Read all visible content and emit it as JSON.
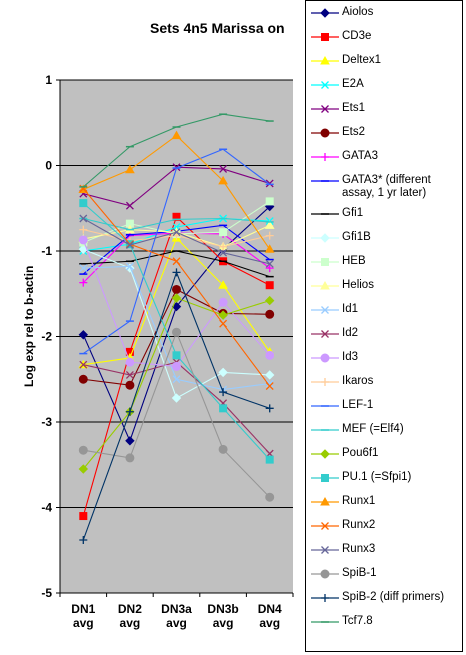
{
  "chart_data": {
    "type": "line",
    "title": "Sets 4n5 Marissa on",
    "xlabel": "",
    "ylabel": "Log exp rel to b-actin",
    "ylim": [
      -5,
      1
    ],
    "yticks": [
      "1",
      "0",
      "-1",
      "-2",
      "-3",
      "-4",
      "-5"
    ],
    "grid": true,
    "legend_position": "right",
    "categories": [
      "DN1 avg",
      "DN2 avg",
      "DN3a avg",
      "DN3b avg",
      "DN4 avg"
    ],
    "series": [
      {
        "name": "Aiolos",
        "color": "#000080",
        "marker": "diamond",
        "values": [
          -1.98,
          -3.22,
          -1.65,
          -0.98,
          -0.48
        ]
      },
      {
        "name": "CD3e",
        "color": "#ff0000",
        "marker": "square",
        "values": [
          -4.1,
          -2.18,
          -0.6,
          -1.12,
          -1.4
        ]
      },
      {
        "name": "Deltex1",
        "color": "#ffff00",
        "marker": "triangle",
        "values": [
          -2.33,
          -2.25,
          -0.85,
          -1.4,
          -2.18
        ]
      },
      {
        "name": "E2A",
        "color": "#00ffff",
        "marker": "x",
        "values": [
          -1.0,
          -0.92,
          -0.72,
          -0.62,
          -0.65
        ]
      },
      {
        "name": "Ets1",
        "color": "#800080",
        "marker": "x",
        "values": [
          -0.33,
          -0.47,
          -0.02,
          -0.04,
          -0.21
        ]
      },
      {
        "name": "Ets2",
        "color": "#800000",
        "marker": "circle",
        "values": [
          -2.5,
          -2.57,
          -1.45,
          -1.73,
          -1.74
        ]
      },
      {
        "name": "GATA3",
        "color": "#ff00ff",
        "marker": "plus",
        "values": [
          -1.37,
          -0.82,
          -0.79,
          -0.8,
          -1.2
        ]
      },
      {
        "name": "GATA3* (different assay, 1 yr later)",
        "color": "#0000ff",
        "marker": "dash",
        "values": [
          -1.27,
          -0.81,
          -0.77,
          -0.7,
          -1.1
        ]
      },
      {
        "name": "Gfi1",
        "color": "#000000",
        "marker": "dash",
        "values": [
          -1.15,
          -1.12,
          -1.0,
          -1.12,
          -1.3
        ]
      },
      {
        "name": "Gfi1B",
        "color": "#ccffff",
        "marker": "diamond",
        "values": [
          -0.98,
          -1.2,
          -2.72,
          -2.42,
          -2.45
        ]
      },
      {
        "name": "HEB",
        "color": "#ccffcc",
        "marker": "square",
        "values": [
          -0.9,
          -0.68,
          -0.8,
          -0.78,
          -0.42
        ]
      },
      {
        "name": "Helios",
        "color": "#ffff99",
        "marker": "triangle",
        "values": [
          -0.86,
          -0.75,
          -0.78,
          -0.95,
          -0.7
        ]
      },
      {
        "name": "Id1",
        "color": "#99ccff",
        "marker": "x",
        "values": [
          -1.2,
          -1.18,
          -2.5,
          -2.62,
          -2.55
        ]
      },
      {
        "name": "Id2",
        "color": "#993366",
        "marker": "x",
        "values": [
          -2.33,
          -2.45,
          -2.3,
          -2.78,
          -3.37
        ]
      },
      {
        "name": "Id3",
        "color": "#cc99ff",
        "marker": "circle",
        "values": [
          -0.87,
          -2.3,
          -2.35,
          -1.6,
          -2.22
        ]
      },
      {
        "name": "Ikaros",
        "color": "#ffcc99",
        "marker": "plus",
        "values": [
          -0.75,
          -0.88,
          -0.82,
          -0.95,
          -0.82
        ]
      },
      {
        "name": "LEF-1",
        "color": "#3366ff",
        "marker": "dash",
        "values": [
          -2.2,
          -1.82,
          -0.03,
          0.19,
          -0.22
        ]
      },
      {
        "name": "MEF (=Elf4)",
        "color": "#33cccc",
        "marker": "dash",
        "values": [
          -0.62,
          -0.75,
          -0.63,
          -0.62,
          -0.66
        ]
      },
      {
        "name": "Pou6f1",
        "color": "#99cc00",
        "marker": "diamond",
        "values": [
          -3.55,
          -2.88,
          -1.55,
          -1.75,
          -1.58
        ]
      },
      {
        "name": "PU.1 (=Sfpi1)",
        "color": "#33cccc",
        "marker": "square",
        "values": [
          -0.44,
          -0.92,
          -2.22,
          -2.84,
          -3.44
        ]
      },
      {
        "name": "Runx1",
        "color": "#ff9900",
        "marker": "triangle",
        "values": [
          -0.28,
          -0.05,
          0.35,
          -0.18,
          -0.98
        ]
      },
      {
        "name": "Runx2",
        "color": "#ff6600",
        "marker": "x",
        "values": [
          -0.27,
          -0.92,
          -1.12,
          -1.85,
          -2.58
        ]
      },
      {
        "name": "Runx3",
        "color": "#666699",
        "marker": "x",
        "values": [
          -0.62,
          -0.93,
          -0.78,
          -1.02,
          -1.15
        ]
      },
      {
        "name": "SpiB-1",
        "color": "#969696",
        "marker": "circle",
        "values": [
          -3.33,
          -3.42,
          -1.95,
          -3.32,
          -3.88
        ]
      },
      {
        "name": "SpiB-2 (diff primers)",
        "color": "#003366",
        "marker": "plus",
        "values": [
          -4.38,
          -2.88,
          -1.25,
          -2.65,
          -2.84
        ]
      },
      {
        "name": "Tcf7.8",
        "color": "#339966",
        "marker": "dash",
        "values": [
          -0.25,
          0.22,
          0.45,
          0.6,
          0.52
        ]
      }
    ]
  }
}
